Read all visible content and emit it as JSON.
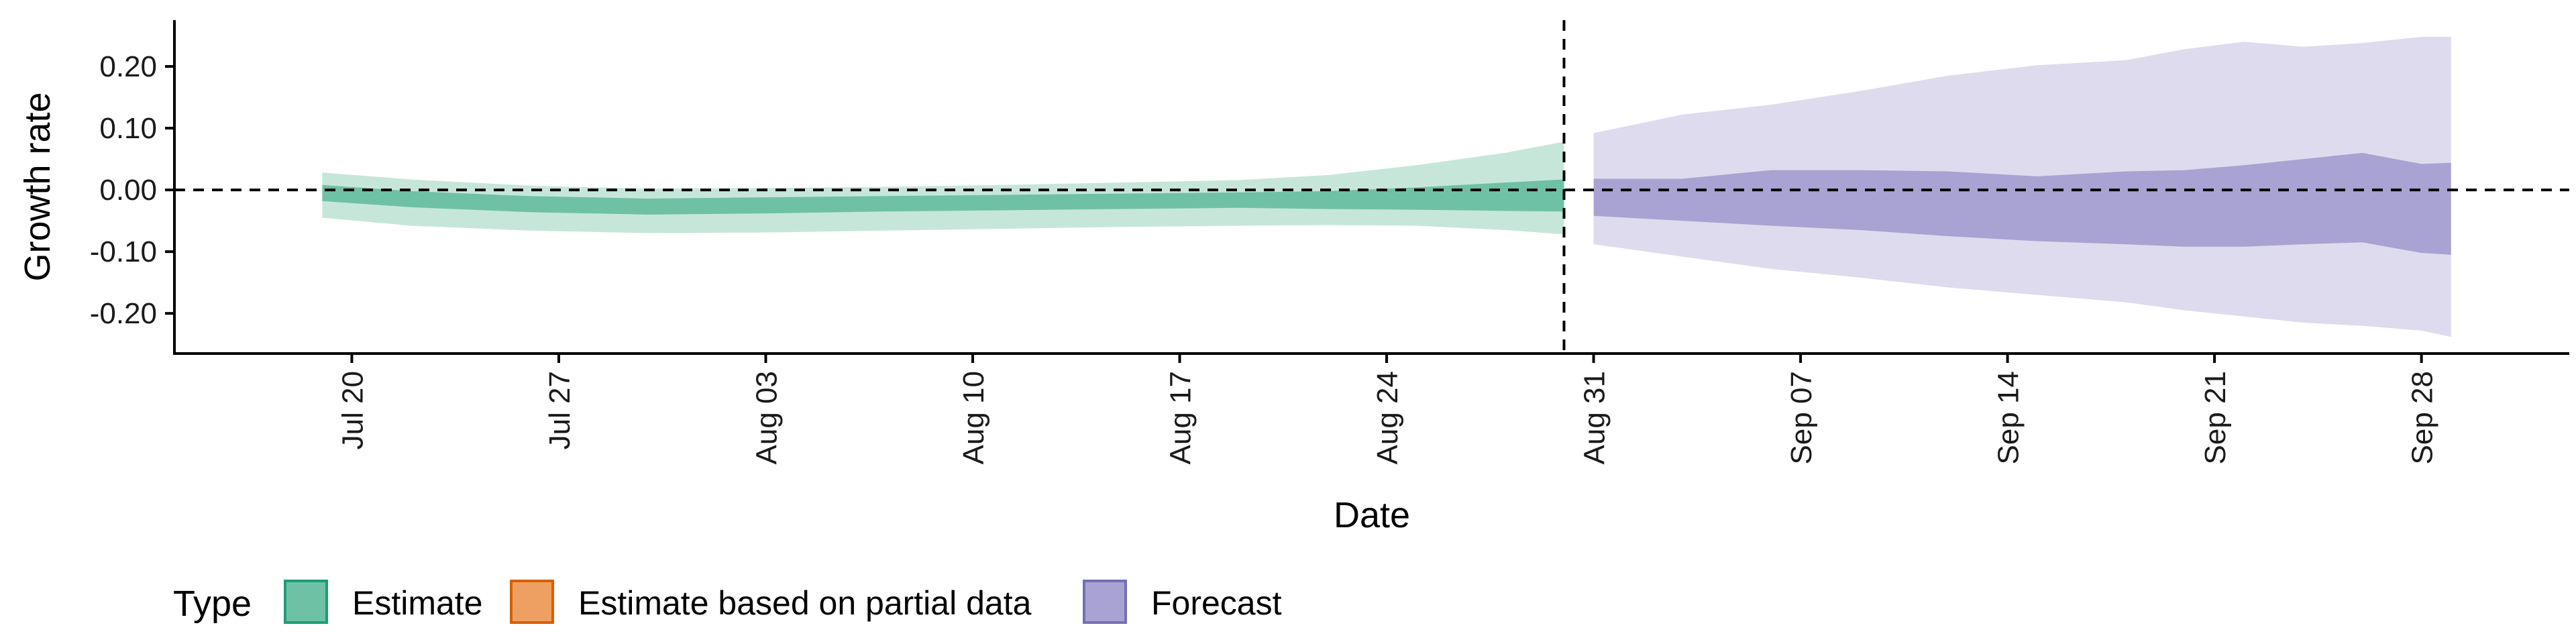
{
  "chart_data": {
    "type": "area",
    "xlabel": "Date",
    "ylabel": "Growth rate",
    "ylim": [
      -0.265,
      0.275
    ],
    "y_ticks": [
      0.2,
      0.1,
      0.0,
      -0.1,
      -0.2
    ],
    "y_tick_labels": [
      "0.20",
      "0.10",
      "0.00",
      "-0.10",
      "-0.20"
    ],
    "x_range": [
      "2021-07-14",
      "2021-10-03"
    ],
    "x_ticks": [
      "2021-07-20",
      "2021-07-27",
      "2021-08-03",
      "2021-08-10",
      "2021-08-17",
      "2021-08-24",
      "2021-08-31",
      "2021-09-07",
      "2021-09-14",
      "2021-09-21",
      "2021-09-28"
    ],
    "x_tick_labels": [
      "Jul 20",
      "Jul 27",
      "Aug 03",
      "Aug 10",
      "Aug 17",
      "Aug 24",
      "Aug 31",
      "Sep 07",
      "Sep 14",
      "Sep 21",
      "Sep 28"
    ],
    "vline_date": "2021-08-30",
    "hline_y": 0,
    "grid": false,
    "legend_position": "bottom-left",
    "legend_title": "Type",
    "legend": [
      {
        "label": "Estimate",
        "fill": "#6fc1a5",
        "stroke": "#1b9e77"
      },
      {
        "label": "Estimate based on partial data",
        "fill": "#eda062",
        "stroke": "#d95f02"
      },
      {
        "label": "Forecast",
        "fill": "#a8a3d2",
        "stroke": "#7570b3"
      }
    ],
    "series": [
      {
        "name": "Estimate",
        "outer_color": "#c7e6da",
        "inner_color": "#6fc1a5",
        "points": [
          {
            "date": "2021-07-19",
            "outer": [
              -0.045,
              0.028
            ],
            "inner": [
              -0.018,
              0.008
            ]
          },
          {
            "date": "2021-07-22",
            "outer": [
              -0.058,
              0.017
            ],
            "inner": [
              -0.028,
              -0.002
            ]
          },
          {
            "date": "2021-07-26",
            "outer": [
              -0.066,
              0.007
            ],
            "inner": [
              -0.036,
              -0.01
            ]
          },
          {
            "date": "2021-07-30",
            "outer": [
              -0.07,
              0.002
            ],
            "inner": [
              -0.04,
              -0.014
            ]
          },
          {
            "date": "2021-08-03",
            "outer": [
              -0.069,
              0.003
            ],
            "inner": [
              -0.038,
              -0.012
            ]
          },
          {
            "date": "2021-08-07",
            "outer": [
              -0.066,
              0.005
            ],
            "inner": [
              -0.035,
              -0.01
            ]
          },
          {
            "date": "2021-08-11",
            "outer": [
              -0.063,
              0.008
            ],
            "inner": [
              -0.033,
              -0.008
            ]
          },
          {
            "date": "2021-08-15",
            "outer": [
              -0.06,
              0.012
            ],
            "inner": [
              -0.031,
              -0.006
            ]
          },
          {
            "date": "2021-08-19",
            "outer": [
              -0.058,
              0.016
            ],
            "inner": [
              -0.029,
              -0.004
            ]
          },
          {
            "date": "2021-08-22",
            "outer": [
              -0.057,
              0.024
            ],
            "inner": [
              -0.031,
              -0.002
            ]
          },
          {
            "date": "2021-08-25",
            "outer": [
              -0.058,
              0.04
            ],
            "inner": [
              -0.032,
              0.004
            ]
          },
          {
            "date": "2021-08-28",
            "outer": [
              -0.065,
              0.06
            ],
            "inner": [
              -0.034,
              0.012
            ]
          },
          {
            "date": "2021-08-30",
            "outer": [
              -0.072,
              0.078
            ],
            "inner": [
              -0.035,
              0.017
            ]
          }
        ]
      },
      {
        "name": "Forecast",
        "outer_color": "#dddbed",
        "inner_color": "#a8a3d2",
        "points": [
          {
            "date": "2021-08-31",
            "outer": [
              -0.088,
              0.092
            ],
            "inner": [
              -0.042,
              0.018
            ]
          },
          {
            "date": "2021-09-03",
            "outer": [
              -0.108,
              0.122
            ],
            "inner": [
              -0.05,
              0.018
            ]
          },
          {
            "date": "2021-09-06",
            "outer": [
              -0.128,
              0.138
            ],
            "inner": [
              -0.058,
              0.032
            ]
          },
          {
            "date": "2021-09-09",
            "outer": [
              -0.142,
              0.16
            ],
            "inner": [
              -0.065,
              0.032
            ]
          },
          {
            "date": "2021-09-12",
            "outer": [
              -0.158,
              0.185
            ],
            "inner": [
              -0.075,
              0.03
            ]
          },
          {
            "date": "2021-09-15",
            "outer": [
              -0.17,
              0.202
            ],
            "inner": [
              -0.083,
              0.022
            ]
          },
          {
            "date": "2021-09-18",
            "outer": [
              -0.182,
              0.21
            ],
            "inner": [
              -0.088,
              0.03
            ]
          },
          {
            "date": "2021-09-20",
            "outer": [
              -0.195,
              0.228
            ],
            "inner": [
              -0.092,
              0.032
            ]
          },
          {
            "date": "2021-09-22",
            "outer": [
              -0.205,
              0.24
            ],
            "inner": [
              -0.092,
              0.04
            ]
          },
          {
            "date": "2021-09-24",
            "outer": [
              -0.215,
              0.232
            ],
            "inner": [
              -0.088,
              0.05
            ]
          },
          {
            "date": "2021-09-26",
            "outer": [
              -0.22,
              0.238
            ],
            "inner": [
              -0.085,
              0.06
            ]
          },
          {
            "date": "2021-09-28",
            "outer": [
              -0.228,
              0.248
            ],
            "inner": [
              -0.102,
              0.042
            ]
          },
          {
            "date": "2021-09-29",
            "outer": [
              -0.238,
              0.248
            ],
            "inner": [
              -0.105,
              0.044
            ]
          }
        ]
      }
    ]
  }
}
